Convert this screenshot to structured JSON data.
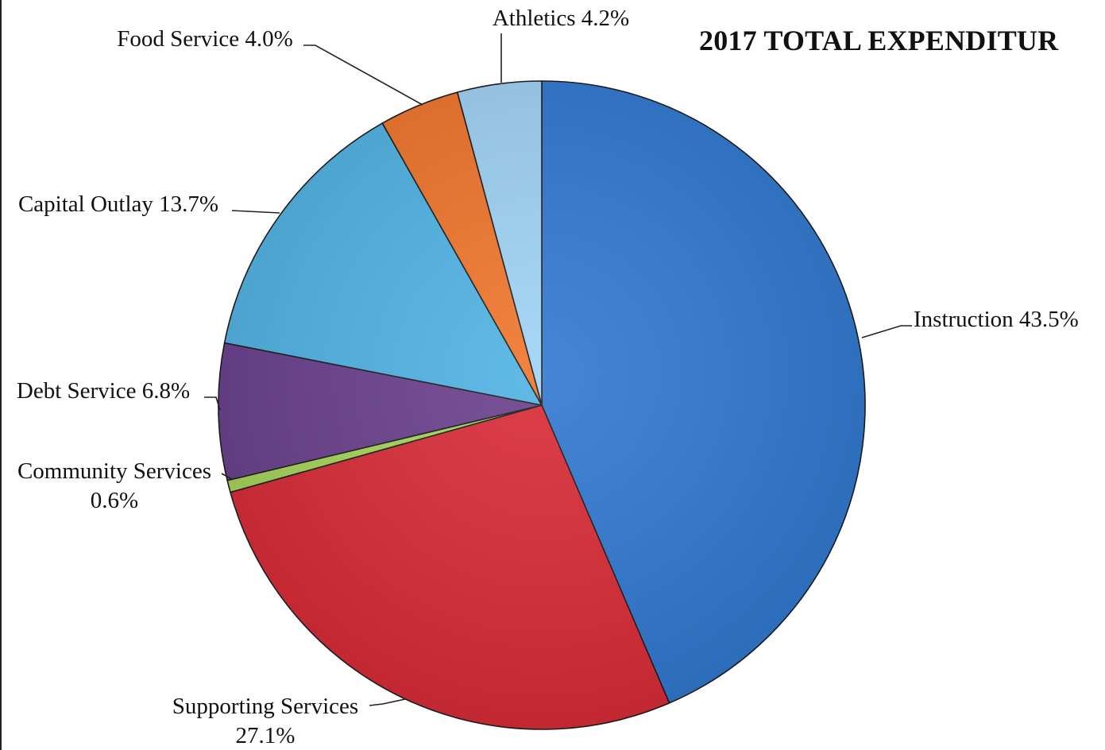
{
  "chart_data": {
    "type": "pie",
    "title": "2017 TOTAL EXPENDITUR",
    "slices": [
      {
        "label": "Instruction",
        "value": 43.5,
        "value_label": "43.5%",
        "color": "#2f78d0"
      },
      {
        "label": "Supporting Services",
        "value": 27.1,
        "value_label": "27.1%",
        "color": "#d92a36"
      },
      {
        "label": "Community Services",
        "value": 0.6,
        "value_label": "0.6%",
        "color": "#a6d45a"
      },
      {
        "label": "Debt Service",
        "value": 6.8,
        "value_label": "6.8%",
        "color": "#6a3f8c"
      },
      {
        "label": "Capital Outlay",
        "value": 13.7,
        "value_label": "13.7%",
        "color": "#4fb3e3"
      },
      {
        "label": "Food Service",
        "value": 4.0,
        "value_label": "4.0%",
        "color": "#f0752b"
      },
      {
        "label": "Athletics",
        "value": 4.2,
        "value_label": "4.2%",
        "color": "#9fd2f5"
      }
    ],
    "legend": "none"
  }
}
